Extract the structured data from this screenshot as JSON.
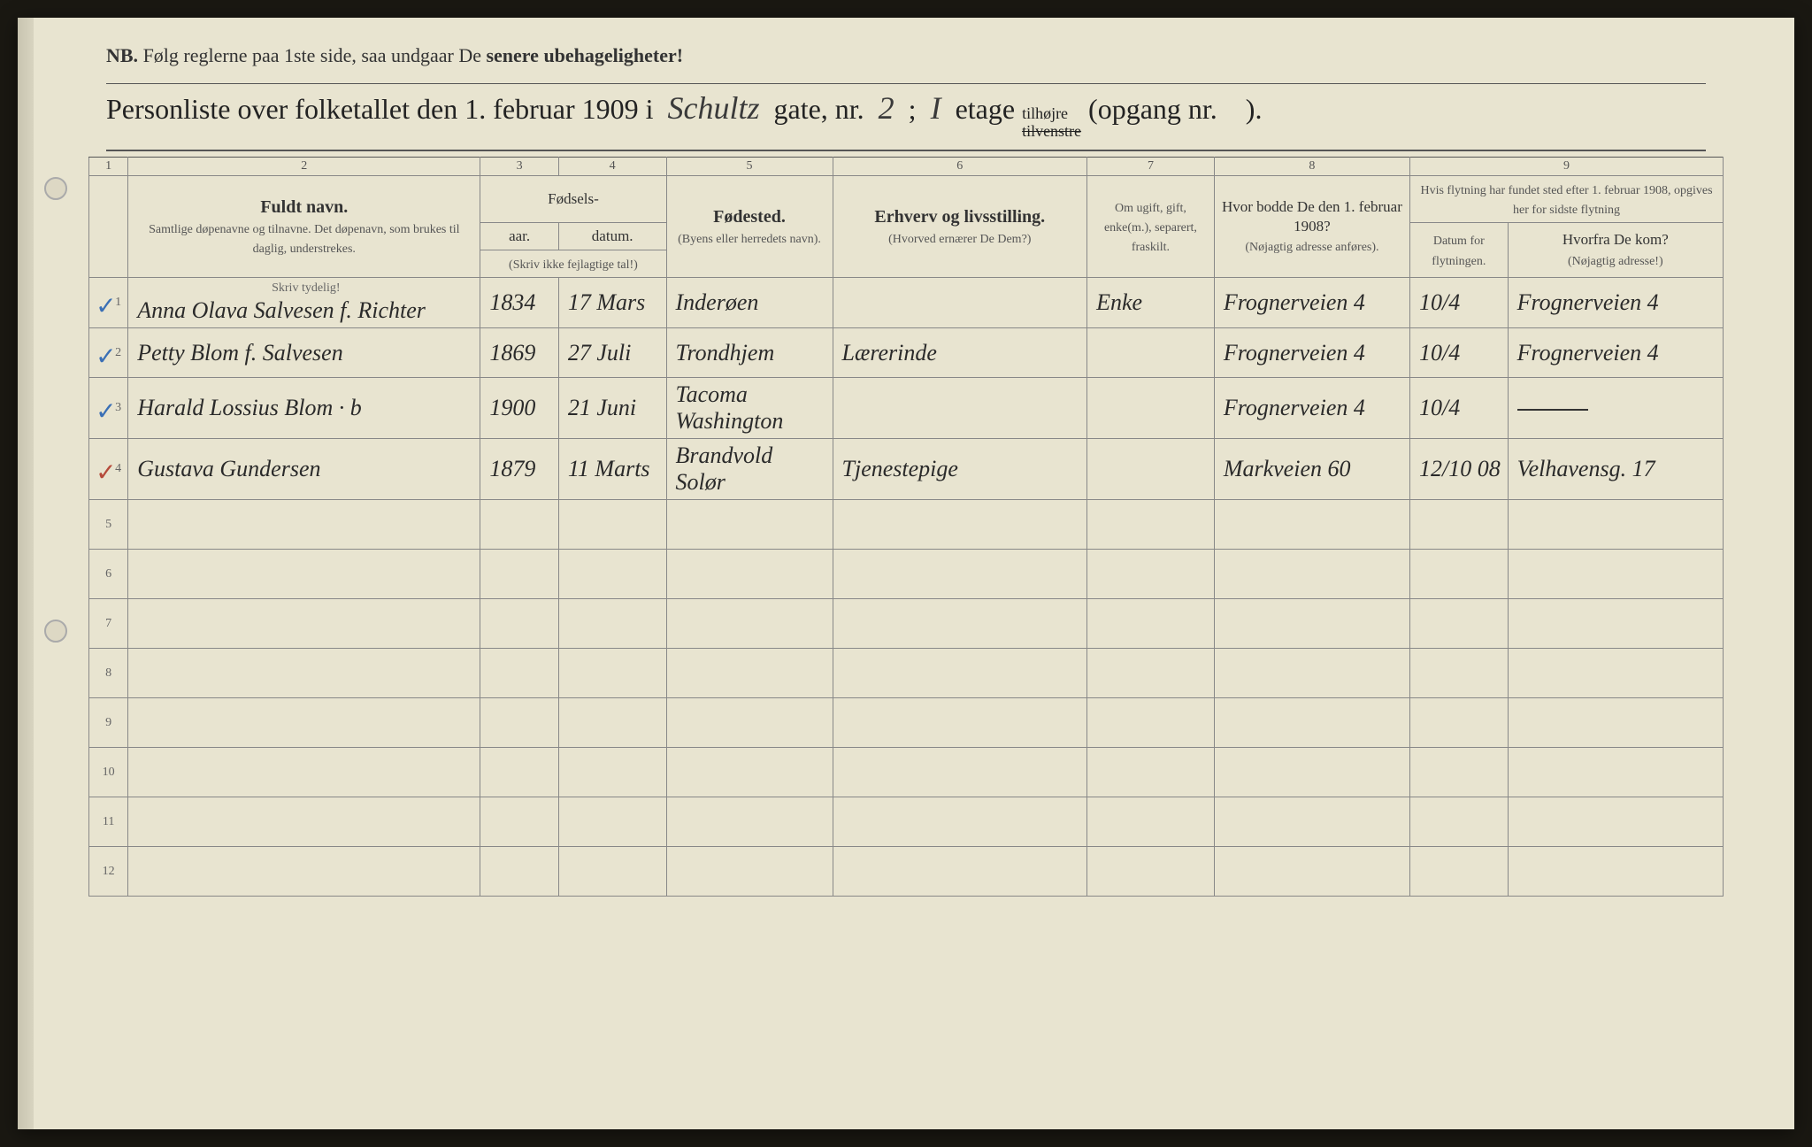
{
  "nb": {
    "prefix": "NB.",
    "text_a": "Følg reglerne paa 1ste side, saa undgaar De ",
    "text_b": "senere ubehageligheter!"
  },
  "title": {
    "lead": "Personliste over folketallet den 1. februar 1909 i",
    "street_hw": "Schultz",
    "gate_label": "gate, nr.",
    "gate_nr_hw": "2",
    "semicolon": ";",
    "etage_hw": "I",
    "etage_label": "etage",
    "etage_opt_top": "tilhøjre",
    "etage_opt_bot": "tilvenstre",
    "opgang": "(opgang nr.",
    "opgang_nr_hw": "",
    "close": ")."
  },
  "colnums": [
    "1",
    "2",
    "3",
    "4",
    "5",
    "6",
    "7",
    "8",
    "9"
  ],
  "headers": {
    "name_strong": "Fuldt navn.",
    "name_sub": "Samtlige døpenavne og tilnavne. Det døpenavn, som brukes til daglig, understrekes.",
    "fodsels": "Fødsels-",
    "aar": "aar.",
    "datum": "datum.",
    "skriv_ikke": "(Skriv ikke fejlagtige tal!)",
    "fodested": "Fødested.",
    "fodested_sub": "(Byens eller herredets navn).",
    "erhverv": "Erhverv og livsstilling.",
    "erhverv_sub": "(Hvorved ernærer De Dem?)",
    "status": "Om ugift, gift, enke(m.), separert, fraskilt.",
    "addr1908": "Hvor bodde De den 1. februar 1908?",
    "addr1908_sub": "(Nøjagtig adresse anføres).",
    "flyt_head": "Hvis flytning har fundet sted efter 1. februar 1908, opgives her for sidste flytning",
    "flyt_date": "Datum for flytningen.",
    "flyt_from": "Hvorfra De kom?",
    "flyt_from_sub": "(Nøjagtig adresse!)",
    "skriv_tydelig": "Skriv tydelig!"
  },
  "rows": [
    {
      "n": "1",
      "tick": "blue",
      "name": "Anna Olava Salvesen f. Richter",
      "year": "1834",
      "date": "17 Mars",
      "birthplace": "Inderøen",
      "occupation": "",
      "status": "Enke",
      "addr1908": "Frognerveien 4",
      "movedate": "10/4",
      "movefrom": "Frognerveien 4"
    },
    {
      "n": "2",
      "tick": "blue",
      "name": "Petty Blom f. Salvesen",
      "year": "1869",
      "date": "27 Juli",
      "birthplace": "Trondhjem",
      "occupation": "Lærerinde",
      "status": "",
      "addr1908": "Frognerveien 4",
      "movedate": "10/4",
      "movefrom": "Frognerveien 4"
    },
    {
      "n": "3",
      "tick": "blue",
      "name": "Harald Lossius Blom     · b",
      "year": "1900",
      "date": "21 Juni",
      "birthplace": "Tacoma Washington",
      "occupation": "",
      "status": "",
      "addr1908": "Frognerveien 4",
      "movedate": "10/4",
      "movefrom": "—"
    },
    {
      "n": "4",
      "tick": "red",
      "name": "Gustava Gundersen",
      "year": "1879",
      "date": "11 Marts",
      "birthplace": "Brandvold Solør",
      "occupation": "Tjenestepige",
      "status": "",
      "addr1908": "Markveien 60",
      "movedate": "12/10 08",
      "movefrom": "Velhavensg. 17"
    }
  ],
  "empty_rows": [
    "5",
    "6",
    "7",
    "8",
    "9",
    "10",
    "11",
    "12"
  ]
}
